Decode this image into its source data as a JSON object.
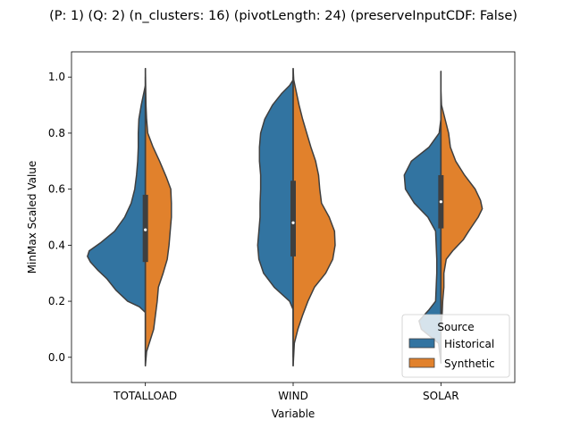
{
  "chart_data": {
    "type": "violin",
    "title": "(P: 1) (Q: 2) (n_clusters: 16) (pivotLength: 24) (preserveInputCDF: False)",
    "xlabel": "Variable",
    "ylabel": "MinMax Scaled Value",
    "ylim": [
      -0.09,
      1.09
    ],
    "yticks": [
      0.0,
      0.2,
      0.4,
      0.6,
      0.8,
      1.0
    ],
    "ytick_labels": [
      "0.0",
      "0.2",
      "0.4",
      "0.6",
      "0.8",
      "1.0"
    ],
    "categories": [
      "TOTALLOAD",
      "WIND",
      "SOLAR"
    ],
    "split": true,
    "legend": {
      "title": "Source",
      "placement": "lower-right",
      "entries": [
        "Historical",
        "Synthetic"
      ]
    },
    "colors": {
      "Historical": "#3274a1",
      "Synthetic": "#e1812c",
      "outline": "#3f3f3f"
    },
    "series": [
      {
        "name": "Historical",
        "violins": [
          {
            "category": "TOTALLOAD",
            "y_range": [
              -0.03,
              1.03
            ],
            "density": [
              [
                -0.03,
                0.0
              ],
              [
                0.1,
                0.0
              ],
              [
                0.16,
                0.0
              ],
              [
                0.18,
                0.1
              ],
              [
                0.2,
                0.3
              ],
              [
                0.24,
                0.5
              ],
              [
                0.28,
                0.65
              ],
              [
                0.31,
                0.8
              ],
              [
                0.34,
                0.93
              ],
              [
                0.36,
                0.98
              ],
              [
                0.38,
                0.95
              ],
              [
                0.41,
                0.75
              ],
              [
                0.45,
                0.52
              ],
              [
                0.5,
                0.35
              ],
              [
                0.55,
                0.24
              ],
              [
                0.6,
                0.18
              ],
              [
                0.65,
                0.15
              ],
              [
                0.7,
                0.13
              ],
              [
                0.75,
                0.12
              ],
              [
                0.8,
                0.12
              ],
              [
                0.85,
                0.11
              ],
              [
                0.9,
                0.07
              ],
              [
                0.94,
                0.03
              ],
              [
                0.97,
                0.0
              ],
              [
                1.03,
                0.0
              ]
            ]
          },
          {
            "category": "WIND",
            "y_range": [
              -0.03,
              1.03
            ],
            "density": [
              [
                -0.03,
                0.0
              ],
              [
                0.1,
                0.0
              ],
              [
                0.17,
                0.0
              ],
              [
                0.2,
                0.06
              ],
              [
                0.25,
                0.32
              ],
              [
                0.3,
                0.5
              ],
              [
                0.35,
                0.58
              ],
              [
                0.4,
                0.6
              ],
              [
                0.45,
                0.58
              ],
              [
                0.5,
                0.56
              ],
              [
                0.55,
                0.56
              ],
              [
                0.6,
                0.55
              ],
              [
                0.65,
                0.55
              ],
              [
                0.7,
                0.57
              ],
              [
                0.75,
                0.57
              ],
              [
                0.8,
                0.55
              ],
              [
                0.85,
                0.48
              ],
              [
                0.9,
                0.35
              ],
              [
                0.94,
                0.2
              ],
              [
                0.97,
                0.06
              ],
              [
                0.99,
                0.0
              ],
              [
                1.03,
                0.0
              ]
            ]
          },
          {
            "category": "SOLAR",
            "y_range": [
              -0.02,
              1.02
            ],
            "density": [
              [
                -0.02,
                0.0
              ],
              [
                0.05,
                0.04
              ],
              [
                0.1,
                0.33
              ],
              [
                0.13,
                0.37
              ],
              [
                0.17,
                0.2
              ],
              [
                0.2,
                0.09
              ],
              [
                0.3,
                0.07
              ],
              [
                0.35,
                0.07
              ],
              [
                0.45,
                0.09
              ],
              [
                0.5,
                0.22
              ],
              [
                0.55,
                0.45
              ],
              [
                0.6,
                0.6
              ],
              [
                0.65,
                0.62
              ],
              [
                0.7,
                0.5
              ],
              [
                0.75,
                0.2
              ],
              [
                0.8,
                0.03
              ],
              [
                0.85,
                0.0
              ],
              [
                1.02,
                0.0
              ]
            ]
          }
        ]
      },
      {
        "name": "Synthetic",
        "violins": [
          {
            "category": "TOTALLOAD",
            "y_range": [
              -0.03,
              1.03
            ],
            "density": [
              [
                -0.03,
                0.0
              ],
              [
                0.02,
                0.02
              ],
              [
                0.06,
                0.08
              ],
              [
                0.1,
                0.14
              ],
              [
                0.15,
                0.17
              ],
              [
                0.2,
                0.2
              ],
              [
                0.25,
                0.22
              ],
              [
                0.3,
                0.3
              ],
              [
                0.35,
                0.37
              ],
              [
                0.4,
                0.4
              ],
              [
                0.45,
                0.42
              ],
              [
                0.5,
                0.44
              ],
              [
                0.55,
                0.44
              ],
              [
                0.6,
                0.43
              ],
              [
                0.64,
                0.36
              ],
              [
                0.7,
                0.24
              ],
              [
                0.75,
                0.13
              ],
              [
                0.8,
                0.04
              ],
              [
                0.85,
                0.02
              ],
              [
                0.9,
                0.01
              ],
              [
                1.03,
                0.0
              ]
            ]
          },
          {
            "category": "WIND",
            "y_range": [
              -0.03,
              1.03
            ],
            "density": [
              [
                -0.03,
                0.0
              ],
              [
                0.05,
                0.02
              ],
              [
                0.1,
                0.08
              ],
              [
                0.15,
                0.16
              ],
              [
                0.2,
                0.25
              ],
              [
                0.25,
                0.36
              ],
              [
                0.3,
                0.55
              ],
              [
                0.35,
                0.67
              ],
              [
                0.4,
                0.71
              ],
              [
                0.45,
                0.7
              ],
              [
                0.5,
                0.61
              ],
              [
                0.55,
                0.48
              ],
              [
                0.6,
                0.45
              ],
              [
                0.65,
                0.43
              ],
              [
                0.7,
                0.38
              ],
              [
                0.75,
                0.3
              ],
              [
                0.8,
                0.23
              ],
              [
                0.85,
                0.16
              ],
              [
                0.9,
                0.1
              ],
              [
                0.95,
                0.05
              ],
              [
                0.99,
                0.01
              ],
              [
                1.03,
                0.0
              ]
            ]
          },
          {
            "category": "SOLAR",
            "y_range": [
              -0.02,
              1.02
            ],
            "density": [
              [
                -0.02,
                0.0
              ],
              [
                0.1,
                0.0
              ],
              [
                0.15,
                0.02
              ],
              [
                0.2,
                0.03
              ],
              [
                0.25,
                0.05
              ],
              [
                0.3,
                0.05
              ],
              [
                0.35,
                0.09
              ],
              [
                0.38,
                0.2
              ],
              [
                0.42,
                0.38
              ],
              [
                0.45,
                0.47
              ],
              [
                0.5,
                0.63
              ],
              [
                0.53,
                0.7
              ],
              [
                0.56,
                0.67
              ],
              [
                0.6,
                0.58
              ],
              [
                0.65,
                0.4
              ],
              [
                0.7,
                0.25
              ],
              [
                0.75,
                0.16
              ],
              [
                0.8,
                0.13
              ],
              [
                0.85,
                0.07
              ],
              [
                0.9,
                0.01
              ],
              [
                0.95,
                0.0
              ],
              [
                1.02,
                0.0
              ]
            ]
          }
        ]
      }
    ],
    "boxes": [
      {
        "category": "TOTALLOAD",
        "q1": 0.34,
        "median": 0.455,
        "q3": 0.58,
        "whisker_low": 0.0,
        "whisker_high": 1.0
      },
      {
        "category": "WIND",
        "q1": 0.36,
        "median": 0.48,
        "q3": 0.63,
        "whisker_low": 0.0,
        "whisker_high": 1.0
      },
      {
        "category": "SOLAR",
        "q1": 0.46,
        "median": 0.555,
        "q3": 0.65,
        "whisker_low": 0.09,
        "whisker_high": 0.88
      }
    ]
  }
}
